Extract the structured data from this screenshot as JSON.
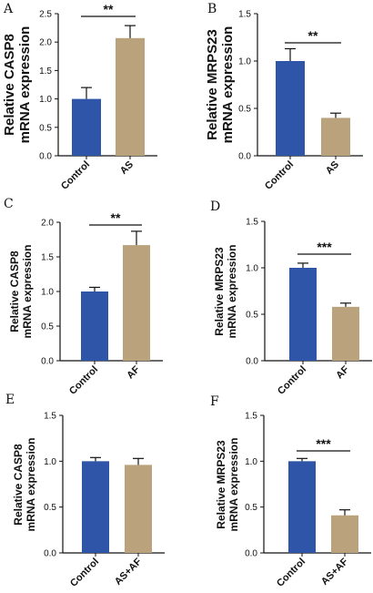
{
  "colors": {
    "control": "#2f55a8",
    "treatment": "#b9a27c",
    "axis": "#111111"
  },
  "chart_data": [
    {
      "panel": "A",
      "type": "bar",
      "categories": [
        "Control",
        "AS"
      ],
      "values": [
        1.0,
        2.07
      ],
      "errors": [
        0.2,
        0.22
      ],
      "ylabel": [
        "Relative CASP8",
        "mRNA expression"
      ],
      "ylim": [
        0,
        2.5
      ],
      "yticks": [
        "0.0",
        "0.5",
        "1.0",
        "1.5",
        "2.0",
        "2.5"
      ],
      "significance": "**"
    },
    {
      "panel": "B",
      "type": "bar",
      "categories": [
        "Control",
        "AS"
      ],
      "values": [
        1.0,
        0.4
      ],
      "errors": [
        0.13,
        0.05
      ],
      "ylabel": [
        "Relative MRPS23",
        "mRNA expression"
      ],
      "ylim": [
        0,
        1.5
      ],
      "yticks": [
        "0.0",
        "0.5",
        "1.0",
        "1.5"
      ],
      "significance": "**"
    },
    {
      "panel": "C",
      "type": "bar",
      "categories": [
        "Control",
        "AF"
      ],
      "values": [
        1.0,
        1.67
      ],
      "errors": [
        0.06,
        0.2
      ],
      "ylabel": [
        "Relative CASP8",
        "mRNA expression"
      ],
      "ylim": [
        0,
        2.0
      ],
      "yticks": [
        "0.0",
        "0.5",
        "1.0",
        "1.5",
        "2.0"
      ],
      "significance": "**"
    },
    {
      "panel": "D",
      "type": "bar",
      "categories": [
        "Control",
        "AF"
      ],
      "values": [
        1.0,
        0.58
      ],
      "errors": [
        0.05,
        0.04
      ],
      "ylabel": [
        "Relative MRPS23",
        "mRNA expression"
      ],
      "ylim": [
        0,
        1.5
      ],
      "yticks": [
        "0.0",
        "0.5",
        "1.0",
        "1.5"
      ],
      "significance": "***"
    },
    {
      "panel": "E",
      "type": "bar",
      "categories": [
        "Control",
        "AS+AF"
      ],
      "values": [
        1.0,
        0.96
      ],
      "errors": [
        0.04,
        0.07
      ],
      "ylabel": [
        "Relative CASP8",
        "mRNA expression"
      ],
      "ylim": [
        0,
        1.5
      ],
      "yticks": [
        "0.0",
        "0.5",
        "1.0",
        "1.5"
      ],
      "significance": ""
    },
    {
      "panel": "F",
      "type": "bar",
      "categories": [
        "Control",
        "AS+AF"
      ],
      "values": [
        1.0,
        0.41
      ],
      "errors": [
        0.03,
        0.06
      ],
      "ylabel": [
        "Relative MRPS23",
        "mRNA expression"
      ],
      "ylim": [
        0,
        1.5
      ],
      "yticks": [
        "0.0",
        "0.5",
        "1.0",
        "1.5"
      ],
      "significance": "***"
    }
  ]
}
